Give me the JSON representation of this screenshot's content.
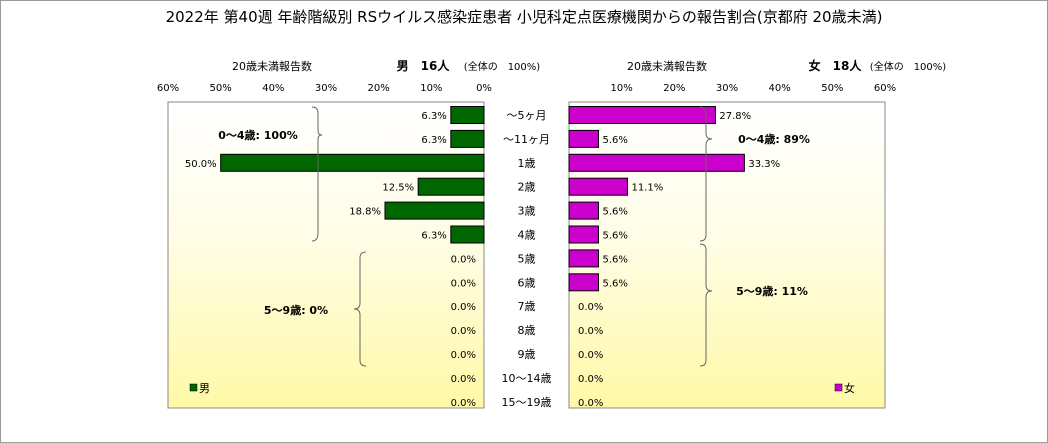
{
  "chart_data": {
    "type": "bar",
    "title": "2022年 第40週 年齢階級別 RSウイルス感染症患者 小児科定点医療機関からの報告割合(京都府 20歳未満)",
    "categories": [
      "～5ヶ月",
      "～11ヶ月",
      "1歳",
      "2歳",
      "3歳",
      "4歳",
      "5歳",
      "6歳",
      "7歳",
      "8歳",
      "9歳",
      "10～14歳",
      "15～19歳"
    ],
    "xlim": [
      0,
      60
    ],
    "ticks": [
      "60%",
      "50%",
      "40%",
      "30%",
      "20%",
      "10%",
      "0%",
      "10%",
      "20%",
      "30%",
      "40%",
      "50%",
      "60%"
    ],
    "grid": false,
    "legend_position": "bottom-left / bottom-right",
    "series": [
      {
        "name": "男",
        "header_label": "20歳未満報告数",
        "header_count": "男　16人",
        "header_note": "(全体の　100%)",
        "color": "#006600",
        "values": [
          6.3,
          6.3,
          50.0,
          12.5,
          18.8,
          6.3,
          0.0,
          0.0,
          0.0,
          0.0,
          0.0,
          0.0,
          0.0
        ],
        "labels": [
          "6.3%",
          "6.3%",
          "50.0%",
          "12.5%",
          "18.8%",
          "6.3%",
          "0.0%",
          "0.0%",
          "0.0%",
          "0.0%",
          "0.0%",
          "0.0%",
          "0.0%"
        ],
        "group_notes": [
          "0～4歳: 100%",
          "5～9歳: 0%"
        ]
      },
      {
        "name": "女",
        "header_label": "20歳未満報告数",
        "header_count": "女　18人",
        "header_note": "(全体の　100%)",
        "color": "#CC00CC",
        "values": [
          27.8,
          5.6,
          33.3,
          11.1,
          5.6,
          5.6,
          5.6,
          5.6,
          0.0,
          0.0,
          0.0,
          0.0,
          0.0
        ],
        "labels": [
          "27.8%",
          "5.6%",
          "33.3%",
          "11.1%",
          "5.6%",
          "5.6%",
          "5.6%",
          "5.6%",
          "0.0%",
          "0.0%",
          "0.0%",
          "0.0%",
          "0.0%"
        ],
        "group_notes": [
          "0～4歳: 89%",
          "5～9歳: 11%"
        ]
      }
    ]
  }
}
